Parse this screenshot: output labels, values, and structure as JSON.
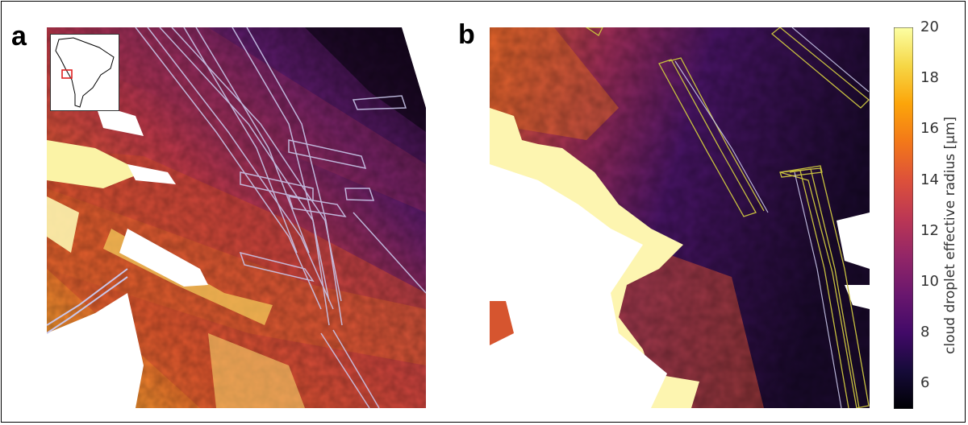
{
  "panels": [
    {
      "letter": "a"
    },
    {
      "letter": "b"
    }
  ],
  "colorbar": {
    "label": "cloud droplet effective radius [μm]",
    "ticks": [
      "6",
      "8",
      "10",
      "12",
      "14",
      "16",
      "18",
      "20"
    ],
    "min": 5,
    "max": 20,
    "colormap": "inferno"
  },
  "chart_data": {
    "type": "heatmap",
    "quantity": "cloud droplet effective radius",
    "unit": "μm",
    "clim": [
      5,
      20
    ],
    "colormap": "inferno",
    "colorbar_ticks": [
      6,
      8,
      10,
      12,
      14,
      16,
      18,
      20
    ],
    "panels": [
      "a",
      "b"
    ],
    "inset": "South America locator map with red box marking the study region",
    "colors": {
      "ship_track_outline_a": "#c9c6ea",
      "ship_track_outline_b": "#c8c040",
      "inset_box": "#e02020",
      "missing_data": "#ffffff"
    }
  }
}
